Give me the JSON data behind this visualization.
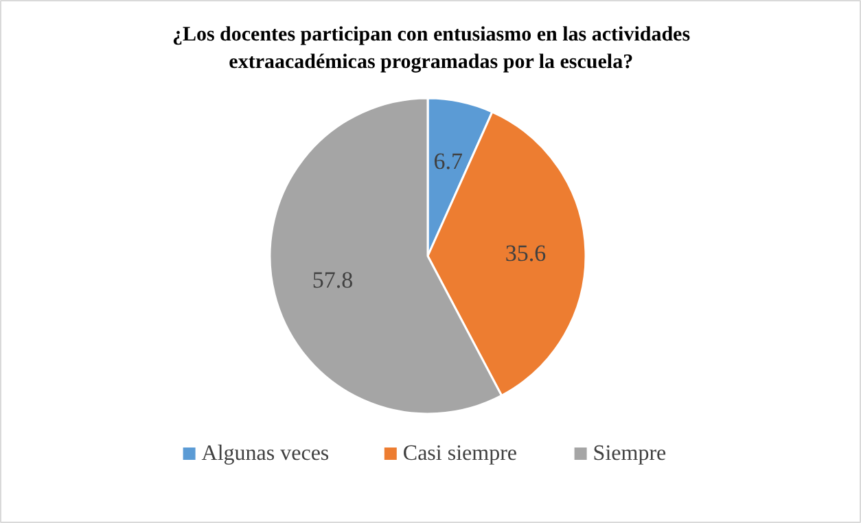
{
  "chart_data": {
    "type": "pie",
    "title": "¿Los docentes participan con entusiasmo en las actividades\nextraacadémicas programadas por la escuela?",
    "categories": [
      "Algunas veces",
      "Casi siempre",
      "Siempre"
    ],
    "values": [
      6.7,
      35.6,
      57.8
    ],
    "colors": [
      "#5b9bd5",
      "#ed7d31",
      "#a5a5a5"
    ],
    "data_labels": true,
    "legend": "bottom"
  }
}
